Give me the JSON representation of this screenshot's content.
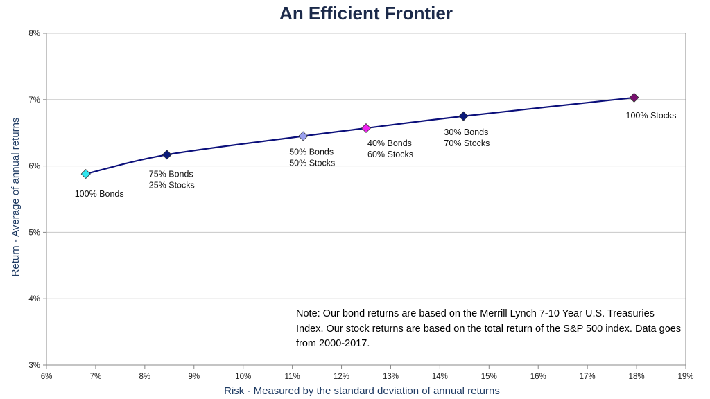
{
  "chart_data": {
    "type": "line",
    "title": "An Efficient Frontier",
    "xlabel": "Risk - Measured by the standard deviation of annual returns",
    "ylabel": "Return - Average of annual returns",
    "xlim": [
      6,
      19
    ],
    "ylim": [
      3,
      8
    ],
    "x_ticks": [
      "6%",
      "7%",
      "8%",
      "9%",
      "10%",
      "11%",
      "12%",
      "13%",
      "14%",
      "15%",
      "16%",
      "17%",
      "18%",
      "19%"
    ],
    "y_ticks": [
      "3%",
      "4%",
      "5%",
      "6%",
      "7%",
      "8%"
    ],
    "grid": "horizontal",
    "line_color": "#0b0f7a",
    "points": [
      {
        "x": 6.8,
        "y": 5.88,
        "label": [
          "100% Bonds"
        ],
        "color": "#33e6ee",
        "label_pos": "below"
      },
      {
        "x": 8.45,
        "y": 6.17,
        "label": [
          "75% Bonds",
          "25% Stocks"
        ],
        "color": "#0b1a7a",
        "label_pos": "below"
      },
      {
        "x": 11.22,
        "y": 6.45,
        "label": [
          "50% Bonds",
          "50% Stocks"
        ],
        "color": "#9aa0ee",
        "label_pos": "below"
      },
      {
        "x": 12.5,
        "y": 6.57,
        "label": [
          "40% Bonds",
          "60% Stocks"
        ],
        "color": "#ee22ee",
        "label_pos": "below-right"
      },
      {
        "x": 14.48,
        "y": 6.75,
        "label": [
          "30% Bonds",
          "70% Stocks"
        ],
        "color": "#0b1a7a",
        "label_pos": "below"
      },
      {
        "x": 17.95,
        "y": 7.03,
        "label": [
          "100% Stocks"
        ],
        "color": "#7a1070",
        "label_pos": "below"
      }
    ]
  },
  "note": "Note:  Our bond returns are based on the Merrill Lynch 7-10 Year U.S. Treasuries Index.  Our stock returns are based on the total return of the S&P 500 index.  Data goes from 2000-2017."
}
